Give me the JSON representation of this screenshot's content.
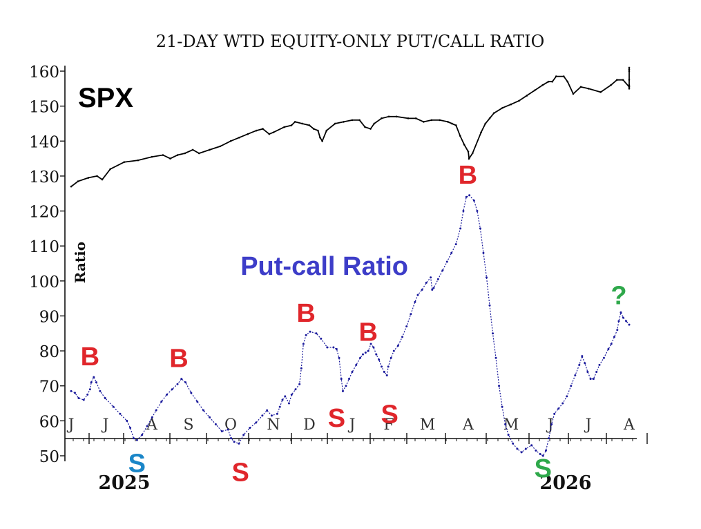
{
  "chart_data": {
    "type": "line",
    "title": "21-DAY WTD EQUITY-ONLY PUT/CALL RATIO",
    "ylabel": "Ratio",
    "y_axis": {
      "range": [
        50,
        160
      ],
      "ticks": [
        "50",
        "60",
        "70",
        "80",
        "90",
        "100",
        "110",
        "120",
        "130",
        "140",
        "150",
        "160"
      ]
    },
    "y_scale_note": "Ratio axis values are shown x100",
    "x_axis": {
      "months": [
        "J",
        "J",
        "A",
        "S",
        "O",
        "N",
        "D",
        "J",
        "F",
        "M",
        "A",
        "M",
        "J",
        "J",
        "A"
      ],
      "years": [
        "2025",
        "2026"
      ]
    },
    "series": [
      {
        "name": "SPX",
        "color": "#000000",
        "points": [
          [
            0,
            127
          ],
          [
            0.2,
            128.5
          ],
          [
            0.5,
            129.5
          ],
          [
            0.75,
            130
          ],
          [
            0.9,
            129
          ],
          [
            1.1,
            132
          ],
          [
            1.4,
            134
          ],
          [
            1.7,
            134.5
          ],
          [
            2.0,
            135.5
          ],
          [
            2.3,
            136
          ],
          [
            2.5,
            135
          ],
          [
            2.7,
            136
          ],
          [
            2.9,
            136.5
          ],
          [
            3.1,
            137.5
          ],
          [
            3.25,
            136.5
          ],
          [
            3.5,
            137.5
          ],
          [
            3.75,
            138.5
          ],
          [
            4.0,
            140
          ],
          [
            4.2,
            141
          ],
          [
            4.4,
            142
          ],
          [
            4.6,
            143
          ],
          [
            4.75,
            143.5
          ],
          [
            4.9,
            142
          ],
          [
            5.0,
            142.5
          ],
          [
            5.3,
            144
          ],
          [
            5.5,
            144.5
          ],
          [
            5.6,
            145.5
          ],
          [
            5.8,
            145
          ],
          [
            6.0,
            144.5
          ],
          [
            6.1,
            143.5
          ],
          [
            6.2,
            143
          ],
          [
            6.25,
            141
          ],
          [
            6.3,
            140
          ],
          [
            6.4,
            143
          ],
          [
            6.6,
            145
          ],
          [
            6.8,
            145.5
          ],
          [
            7.0,
            146
          ],
          [
            7.2,
            146
          ],
          [
            7.35,
            144
          ],
          [
            7.5,
            143.5
          ],
          [
            7.6,
            145
          ],
          [
            7.8,
            146.5
          ],
          [
            8.0,
            147
          ],
          [
            8.2,
            147
          ],
          [
            8.5,
            146.5
          ],
          [
            8.7,
            146.5
          ],
          [
            8.9,
            145.5
          ],
          [
            9.1,
            146
          ],
          [
            9.3,
            146
          ],
          [
            9.5,
            145.5
          ],
          [
            9.6,
            145
          ],
          [
            9.7,
            144.5
          ],
          [
            9.8,
            141.5
          ],
          [
            9.9,
            139
          ],
          [
            10.0,
            137
          ],
          [
            10.02,
            135
          ],
          [
            10.1,
            136.5
          ],
          [
            10.3,
            142.5
          ],
          [
            10.4,
            145
          ],
          [
            10.5,
            146.5
          ],
          [
            10.6,
            148
          ],
          [
            10.8,
            149.5
          ],
          [
            11.0,
            150.5
          ],
          [
            11.2,
            151.5
          ],
          [
            11.4,
            153
          ],
          [
            11.6,
            154.5
          ],
          [
            11.8,
            156
          ],
          [
            11.95,
            157
          ],
          [
            12.05,
            157
          ],
          [
            12.15,
            158.5
          ],
          [
            12.35,
            158.5
          ],
          [
            12.45,
            157
          ],
          [
            12.6,
            153.5
          ],
          [
            12.8,
            155.5
          ],
          [
            13.0,
            155
          ],
          [
            13.3,
            154
          ],
          [
            13.55,
            156
          ],
          [
            13.7,
            157.5
          ],
          [
            13.85,
            157.5
          ],
          [
            14.0,
            155.5
          ],
          [
            14.15,
            156
          ],
          [
            14.3,
            155.5
          ],
          [
            14.4,
            155
          ],
          [
            14.47,
            157.5
          ],
          [
            14.52,
            160
          ],
          [
            14.6,
            161
          ],
          [
            14.7,
            160.5
          ]
        ]
      },
      {
        "name": "Put-call Ratio",
        "color": "#1a1a9c",
        "points": [
          [
            0,
            68.5
          ],
          [
            0.15,
            68
          ],
          [
            0.3,
            66.5
          ],
          [
            0.5,
            66
          ],
          [
            0.65,
            67.5
          ],
          [
            0.75,
            69
          ],
          [
            0.8,
            71
          ],
          [
            0.9,
            72.5
          ],
          [
            1.0,
            71
          ],
          [
            1.15,
            68.5
          ],
          [
            1.35,
            66.5
          ],
          [
            1.6,
            64
          ],
          [
            1.8,
            62
          ],
          [
            2.0,
            60
          ],
          [
            2.1,
            58
          ],
          [
            2.2,
            55
          ],
          [
            2.3,
            54.5
          ],
          [
            2.45,
            56
          ],
          [
            2.6,
            58.5
          ],
          [
            2.75,
            61
          ],
          [
            2.9,
            63
          ],
          [
            3.1,
            65.5
          ],
          [
            3.3,
            67.5
          ],
          [
            3.5,
            69
          ],
          [
            3.7,
            70.5
          ],
          [
            3.85,
            72
          ],
          [
            4.0,
            71
          ],
          [
            4.2,
            68
          ],
          [
            4.4,
            65.5
          ],
          [
            4.6,
            63
          ],
          [
            4.8,
            61
          ],
          [
            5.0,
            59
          ],
          [
            5.2,
            57
          ],
          [
            5.4,
            57.5
          ],
          [
            5.5,
            55
          ],
          [
            5.6,
            54
          ],
          [
            5.75,
            53.5
          ],
          [
            5.9,
            56
          ],
          [
            6.1,
            58
          ],
          [
            6.3,
            59.5
          ],
          [
            6.5,
            61.5
          ],
          [
            6.65,
            63
          ],
          [
            6.8,
            61.5
          ],
          [
            7.0,
            62
          ],
          [
            7.1,
            64
          ],
          [
            7.2,
            66
          ],
          [
            7.3,
            67
          ],
          [
            7.45,
            65
          ],
          [
            7.55,
            67.5
          ],
          [
            7.7,
            69
          ],
          [
            7.85,
            70.5
          ],
          [
            7.92,
            75
          ],
          [
            8.0,
            82
          ],
          [
            8.1,
            84.5
          ],
          [
            8.25,
            85.5
          ],
          [
            8.45,
            85
          ],
          [
            8.6,
            83.5
          ],
          [
            8.8,
            81
          ],
          [
            9.0,
            81
          ],
          [
            9.1,
            80.5
          ],
          [
            9.18,
            78
          ],
          [
            9.25,
            72
          ],
          [
            9.3,
            68.5
          ],
          [
            9.4,
            70
          ],
          [
            9.5,
            72
          ],
          [
            9.6,
            74
          ],
          [
            9.75,
            76
          ],
          [
            9.9,
            78
          ],
          [
            10.0,
            79
          ],
          [
            10.1,
            79.5
          ],
          [
            10.2,
            80
          ],
          [
            10.3,
            82
          ],
          [
            10.4,
            81
          ],
          [
            10.5,
            79
          ],
          [
            10.6,
            77.5
          ],
          [
            10.7,
            75.5
          ],
          [
            10.8,
            74
          ],
          [
            10.9,
            73
          ],
          [
            10.95,
            75.5
          ],
          [
            11.05,
            78
          ],
          [
            11.15,
            80
          ],
          [
            11.3,
            81.5
          ],
          [
            11.45,
            84
          ],
          [
            11.6,
            87
          ],
          [
            11.75,
            90.5
          ],
          [
            11.9,
            94
          ],
          [
            12.0,
            96
          ],
          [
            12.15,
            97.5
          ],
          [
            12.3,
            99.5
          ],
          [
            12.45,
            101
          ],
          [
            12.5,
            97.5
          ],
          [
            12.55,
            98
          ],
          [
            12.7,
            100.5
          ],
          [
            12.85,
            103
          ],
          [
            13.0,
            105.5
          ],
          [
            13.15,
            108
          ],
          [
            13.3,
            110.5
          ],
          [
            13.45,
            115
          ],
          [
            13.55,
            120
          ],
          [
            13.65,
            124
          ],
          [
            13.75,
            124.5
          ],
          [
            13.9,
            123
          ],
          [
            14.0,
            120
          ],
          [
            14.1,
            115
          ],
          [
            14.2,
            108
          ],
          [
            14.3,
            101
          ],
          [
            14.4,
            93
          ],
          [
            14.5,
            85
          ],
          [
            14.6,
            78
          ],
          [
            14.7,
            70
          ],
          [
            14.8,
            64
          ],
          [
            14.9,
            59
          ],
          [
            15.0,
            56
          ],
          [
            15.15,
            53.5
          ],
          [
            15.3,
            52
          ],
          [
            15.45,
            51
          ],
          [
            15.6,
            52
          ],
          [
            15.8,
            53
          ],
          [
            15.95,
            51.5
          ],
          [
            16.1,
            50.5
          ],
          [
            16.2,
            50
          ],
          [
            16.3,
            51.5
          ],
          [
            16.4,
            55
          ],
          [
            16.5,
            59
          ],
          [
            16.6,
            62
          ],
          [
            16.75,
            63.5
          ],
          [
            16.9,
            65
          ],
          [
            17.05,
            67
          ],
          [
            17.2,
            70
          ],
          [
            17.35,
            73
          ],
          [
            17.5,
            76
          ],
          [
            17.6,
            78.5
          ],
          [
            17.7,
            76.5
          ],
          [
            17.8,
            74
          ],
          [
            17.9,
            72
          ],
          [
            18.0,
            72
          ],
          [
            18.1,
            74
          ],
          [
            18.2,
            76
          ],
          [
            18.35,
            78
          ],
          [
            18.5,
            80.5
          ],
          [
            18.6,
            82
          ],
          [
            18.7,
            84
          ],
          [
            18.8,
            86
          ],
          [
            18.85,
            88.5
          ],
          [
            18.92,
            91
          ],
          [
            19.0,
            89.5
          ],
          [
            19.1,
            88.5
          ],
          [
            19.2,
            87.5
          ]
        ]
      }
    ],
    "annotations": [
      {
        "text": "SPX",
        "color": "#000000",
        "x": 1.0,
        "y": 152.5
      },
      {
        "text": "Put-call Ratio",
        "color": "#3d3dc8",
        "x": 5.8,
        "y": 104.5
      },
      {
        "text": "B",
        "color": "#e0262b",
        "x": 0.75,
        "y": 79
      },
      {
        "text": "S",
        "color": "#1a86c8",
        "x": 2.3,
        "y": 48.5
      },
      {
        "text": "B",
        "color": "#e0262b",
        "x": 3.75,
        "y": 78.5
      },
      {
        "text": "S",
        "color": "#e0262b",
        "x": 5.8,
        "y": 46
      },
      {
        "text": "B",
        "color": "#e0262b",
        "x": 8.1,
        "y": 91.5
      },
      {
        "text": "S",
        "color": "#e0262b",
        "x": 9.1,
        "y": 61.5
      },
      {
        "text": "B",
        "color": "#e0262b",
        "x": 10.2,
        "y": 86
      },
      {
        "text": "S",
        "color": "#e0262b",
        "x": 11.0,
        "y": 62.5
      },
      {
        "text": "B",
        "color": "#e0262b",
        "x": 13.7,
        "y": 131
      },
      {
        "text": "S",
        "color": "#2ea84a",
        "x": 16.2,
        "y": 47
      },
      {
        "text": "?",
        "color": "#2ea84a",
        "x": 18.85,
        "y": 96.5
      }
    ]
  }
}
